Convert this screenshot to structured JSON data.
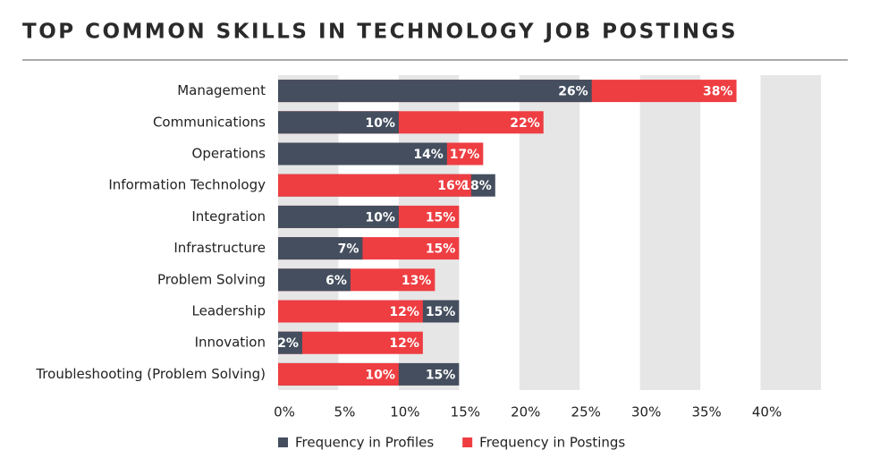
{
  "chart_data": {
    "type": "overlapped-bar",
    "orientation": "horizontal",
    "title": "TOP COMMON SKILLS IN TECHNOLOGY JOB POSTINGS",
    "categories": [
      "Management",
      "Communications",
      "Operations",
      "Information Technology",
      "Integration",
      "Infrastructure",
      "Problem Solving",
      "Leadership",
      "Innovation",
      "Troubleshooting (Problem Solving)"
    ],
    "series": [
      {
        "name": "Frequency in Profiles",
        "color": "#444e5e",
        "values": [
          26,
          10,
          14,
          18,
          10,
          7,
          6,
          15,
          2,
          15
        ],
        "value_labels": [
          "26%",
          "10%",
          "14%",
          "18%",
          "10%",
          "7%",
          "6%",
          "15%",
          "2%",
          "15%"
        ]
      },
      {
        "name": "Frequency in Postings",
        "color": "#ee3e42",
        "values": [
          38,
          22,
          17,
          16,
          15,
          15,
          13,
          12,
          12,
          10
        ],
        "value_labels": [
          "38%",
          "22%",
          "17%",
          "16%",
          "15%",
          "15%",
          "13%",
          "12%",
          "12%",
          "10%"
        ]
      }
    ],
    "xlim": [
      0,
      45
    ],
    "xticks": [
      {
        "value": 0,
        "label": "0%"
      },
      {
        "value": 5,
        "label": "5%"
      },
      {
        "value": 10,
        "label": "10%"
      },
      {
        "value": 15,
        "label": "15%"
      },
      {
        "value": 20,
        "label": "20%"
      },
      {
        "value": 25,
        "label": "25%"
      },
      {
        "value": 30,
        "label": "30%"
      },
      {
        "value": 35,
        "label": "35%"
      },
      {
        "value": 40,
        "label": "40%"
      }
    ],
    "grid": "bands",
    "legend": "bottom"
  }
}
